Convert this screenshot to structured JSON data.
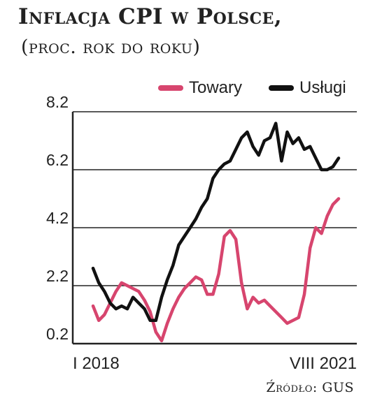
{
  "header": {
    "title": "Inflacja CPI w Polsce,",
    "subtitle": "(proc. rok do roku)"
  },
  "source": "Źródło: GUS",
  "colors": {
    "towary": "#d7456e",
    "uslugi": "#111111",
    "grid": "#222222"
  },
  "chart_data": {
    "type": "line",
    "title": "Inflacja CPI w Polsce,",
    "subtitle": "(proc. rok do roku)",
    "xlabel": "",
    "ylabel": "",
    "ylim": [
      0.2,
      8.2
    ],
    "yticks": [
      "8.2",
      "6.2",
      "4.2",
      "2.2",
      "0.2"
    ],
    "ytick_values": [
      8.2,
      6.2,
      4.2,
      2.2,
      0.2
    ],
    "xtick_labels": [
      "I 2018",
      "VIII 2021"
    ],
    "grid": true,
    "legend": "top-right",
    "x": [
      "2018-01",
      "2018-02",
      "2018-03",
      "2018-04",
      "2018-05",
      "2018-06",
      "2018-07",
      "2018-08",
      "2018-09",
      "2018-10",
      "2018-11",
      "2018-12",
      "2019-01",
      "2019-02",
      "2019-03",
      "2019-04",
      "2019-05",
      "2019-06",
      "2019-07",
      "2019-08",
      "2019-09",
      "2019-10",
      "2019-11",
      "2019-12",
      "2020-01",
      "2020-02",
      "2020-03",
      "2020-04",
      "2020-05",
      "2020-06",
      "2020-07",
      "2020-08",
      "2020-09",
      "2020-10",
      "2020-11",
      "2020-12",
      "2021-01",
      "2021-02",
      "2021-03",
      "2021-04",
      "2021-05",
      "2021-06",
      "2021-07",
      "2021-08"
    ],
    "series": [
      {
        "name": "Towary",
        "values": [
          1.5,
          1.0,
          1.2,
          1.6,
          2.0,
          2.3,
          2.2,
          2.1,
          2.0,
          1.7,
          1.3,
          0.6,
          0.3,
          0.9,
          1.4,
          1.8,
          2.1,
          2.3,
          2.5,
          2.4,
          1.9,
          1.9,
          2.6,
          3.9,
          4.1,
          3.8,
          2.3,
          1.4,
          1.8,
          1.6,
          1.7,
          1.5,
          1.3,
          1.1,
          0.9,
          1.0,
          1.1,
          1.9,
          3.5,
          4.2,
          4.0,
          4.6,
          5.0,
          5.2
        ]
      },
      {
        "name": "Usługi",
        "values": [
          2.8,
          2.3,
          2.0,
          1.6,
          1.4,
          1.5,
          1.4,
          1.8,
          1.6,
          1.4,
          1.0,
          1.0,
          1.8,
          2.4,
          2.9,
          3.6,
          3.9,
          4.2,
          4.5,
          4.9,
          5.2,
          5.9,
          6.2,
          6.4,
          6.5,
          6.9,
          7.3,
          7.5,
          7.0,
          6.7,
          7.2,
          7.3,
          7.8,
          6.5,
          7.5,
          7.1,
          7.3,
          6.9,
          7.0,
          6.6,
          6.2,
          6.2,
          6.3,
          6.6
        ]
      }
    ]
  }
}
